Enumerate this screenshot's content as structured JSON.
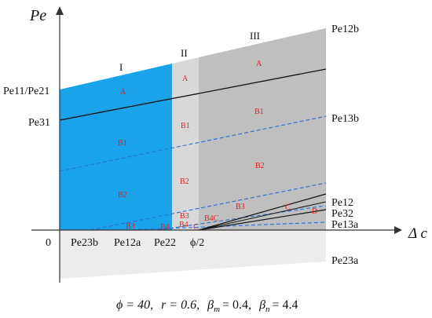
{
  "axes": {
    "y_label": "Pe",
    "x_label": "Δ c",
    "origin": "0"
  },
  "left_labels": [
    "Pe11/Pe21",
    "Pe31"
  ],
  "bottom_labels": [
    "Pe23b",
    "Pe12a",
    "Pe22",
    "ϕ/2"
  ],
  "right_labels": [
    "Pe12b",
    "Pe13b",
    "Pe12",
    "Pe32",
    "Pe13a",
    "Pe23a"
  ],
  "zone_labels": [
    "I",
    "II",
    "III"
  ],
  "region_labels": {
    "zone1": [
      "A",
      "B1",
      "B2",
      "B3"
    ],
    "zone2": [
      "A",
      "B1",
      "B2",
      "B3",
      "B4"
    ],
    "zone3": [
      "A",
      "B1",
      "B2",
      "B3",
      "C",
      "D"
    ],
    "small": [
      "B4",
      "C",
      "B4C"
    ]
  },
  "caption": {
    "phi": "ϕ = 40,",
    "r": "r = 0.6,",
    "beta_m": "β",
    "beta_m_sub": "m",
    "beta_m_val": "= 0.4,",
    "beta_n": "β",
    "beta_n_sub": "n",
    "beta_n_val": "= 4.4"
  },
  "colors": {
    "zone1": "#1aa3e8",
    "zone2": "#d6d6d6",
    "zone3": "#bdbdbd",
    "negative": "#ececec",
    "dashed": "#2b6fd6",
    "axis": "#333333"
  }
}
